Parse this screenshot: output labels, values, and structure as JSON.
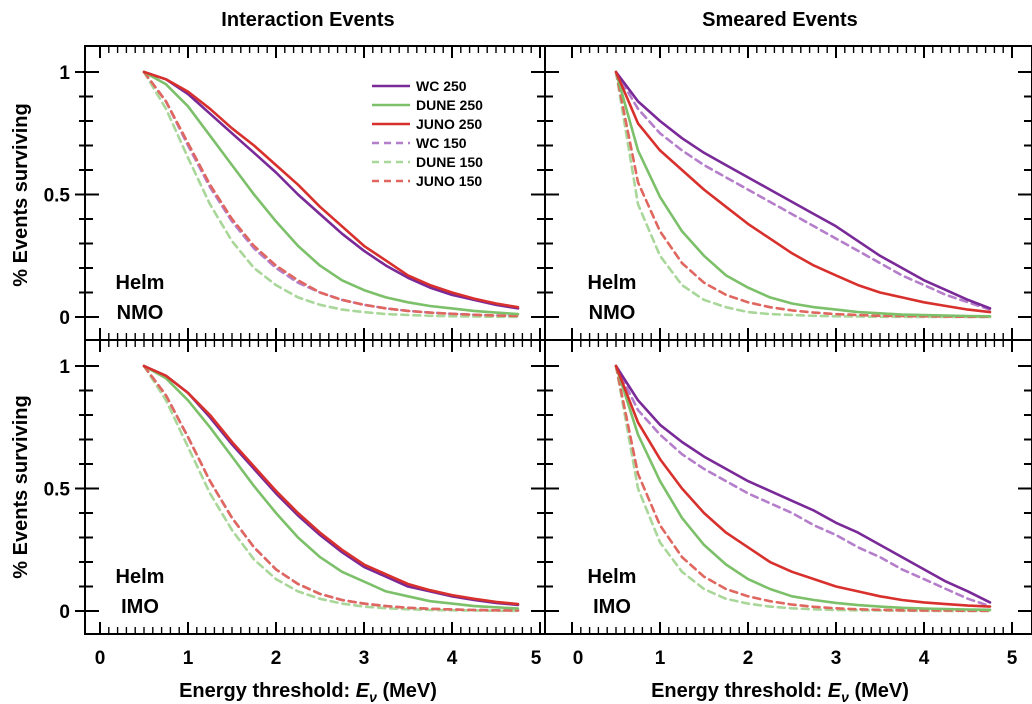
{
  "column_titles": [
    "Interaction Events",
    "Smeared Events"
  ],
  "ylabel": "% Events surviving",
  "xlabel_prefix": "Energy threshold: ",
  "xlabel_var": "E",
  "xlabel_sub": "ν",
  "xlabel_suffix": " (MeV)",
  "x_ticks": [
    "0",
    "1",
    "2",
    "3",
    "4",
    "5"
  ],
  "y_ticks": [
    "0",
    "0.5",
    "1"
  ],
  "series_styles": [
    {
      "name": "WC 250",
      "color": "#7a2a98",
      "dashed": false
    },
    {
      "name": "DUNE 250",
      "color": "#7cc06a",
      "dashed": false
    },
    {
      "name": "JUNO 250",
      "color": "#d8302c",
      "dashed": false
    },
    {
      "name": "WC 150",
      "color": "#b57ecb",
      "dashed": true
    },
    {
      "name": "DUNE 150",
      "color": "#a9d79a",
      "dashed": true
    },
    {
      "name": "JUNO 150",
      "color": "#e0675f",
      "dashed": true
    }
  ],
  "chart_data": [
    {
      "type": "line",
      "panel": "top-left",
      "notes": [
        "Helm",
        "NMO"
      ],
      "xlim": [
        0,
        5
      ],
      "ylim": [
        0,
        1.0
      ],
      "x": [
        0.5,
        0.75,
        1.0,
        1.25,
        1.5,
        1.75,
        2.0,
        2.25,
        2.5,
        2.75,
        3.0,
        3.25,
        3.5,
        3.75,
        4.0,
        4.25,
        4.5,
        4.75
      ],
      "series": [
        {
          "name": "WC 250",
          "values": [
            1.0,
            0.97,
            0.91,
            0.83,
            0.75,
            0.67,
            0.59,
            0.5,
            0.42,
            0.34,
            0.27,
            0.21,
            0.16,
            0.12,
            0.09,
            0.07,
            0.05,
            0.035
          ]
        },
        {
          "name": "DUNE 250",
          "values": [
            1.0,
            0.95,
            0.86,
            0.74,
            0.62,
            0.5,
            0.39,
            0.29,
            0.21,
            0.15,
            0.11,
            0.08,
            0.06,
            0.045,
            0.035,
            0.025,
            0.018,
            0.012
          ]
        },
        {
          "name": "JUNO 250",
          "values": [
            1.0,
            0.97,
            0.92,
            0.85,
            0.77,
            0.7,
            0.62,
            0.54,
            0.45,
            0.37,
            0.29,
            0.23,
            0.17,
            0.13,
            0.1,
            0.075,
            0.055,
            0.04
          ]
        },
        {
          "name": "WC 150",
          "values": [
            1.0,
            0.88,
            0.7,
            0.53,
            0.39,
            0.28,
            0.2,
            0.14,
            0.1,
            0.07,
            0.05,
            0.035,
            0.025,
            0.018,
            0.013,
            0.009,
            0.006,
            0.004
          ]
        },
        {
          "name": "DUNE 150",
          "values": [
            1.0,
            0.85,
            0.65,
            0.46,
            0.31,
            0.2,
            0.13,
            0.08,
            0.05,
            0.03,
            0.02,
            0.012,
            0.008,
            0.005,
            0.003,
            0.002,
            0.001,
            0.001
          ]
        },
        {
          "name": "JUNO 150",
          "values": [
            1.0,
            0.88,
            0.71,
            0.54,
            0.4,
            0.29,
            0.21,
            0.15,
            0.1,
            0.07,
            0.05,
            0.035,
            0.025,
            0.018,
            0.013,
            0.009,
            0.006,
            0.004
          ]
        }
      ]
    },
    {
      "type": "line",
      "panel": "top-right",
      "notes": [
        "Helm",
        "NMO"
      ],
      "xlim": [
        0,
        5
      ],
      "ylim": [
        0,
        1.0
      ],
      "x": [
        0.5,
        0.75,
        1.0,
        1.25,
        1.5,
        1.75,
        2.0,
        2.25,
        2.5,
        2.75,
        3.0,
        3.25,
        3.5,
        3.75,
        4.0,
        4.25,
        4.5,
        4.75
      ],
      "series": [
        {
          "name": "WC 250",
          "values": [
            1.0,
            0.88,
            0.8,
            0.73,
            0.67,
            0.62,
            0.57,
            0.52,
            0.47,
            0.42,
            0.37,
            0.31,
            0.25,
            0.2,
            0.15,
            0.11,
            0.07,
            0.035
          ]
        },
        {
          "name": "DUNE 250",
          "values": [
            1.0,
            0.68,
            0.49,
            0.35,
            0.25,
            0.17,
            0.12,
            0.08,
            0.055,
            0.04,
            0.03,
            0.02,
            0.015,
            0.01,
            0.008,
            0.006,
            0.004,
            0.003
          ]
        },
        {
          "name": "JUNO 250",
          "values": [
            1.0,
            0.79,
            0.68,
            0.6,
            0.52,
            0.45,
            0.38,
            0.32,
            0.26,
            0.21,
            0.17,
            0.13,
            0.1,
            0.08,
            0.06,
            0.045,
            0.03,
            0.02
          ]
        },
        {
          "name": "WC 150",
          "values": [
            1.0,
            0.85,
            0.75,
            0.68,
            0.62,
            0.57,
            0.52,
            0.47,
            0.42,
            0.37,
            0.32,
            0.27,
            0.22,
            0.17,
            0.13,
            0.09,
            0.06,
            0.03
          ]
        },
        {
          "name": "DUNE 150",
          "values": [
            1.0,
            0.46,
            0.25,
            0.13,
            0.07,
            0.04,
            0.02,
            0.012,
            0.008,
            0.005,
            0.003,
            0.002,
            0.001,
            0.001,
            0.0,
            0.0,
            0.0,
            0.0
          ]
        },
        {
          "name": "JUNO 150",
          "values": [
            1.0,
            0.55,
            0.35,
            0.22,
            0.14,
            0.09,
            0.06,
            0.04,
            0.027,
            0.018,
            0.012,
            0.008,
            0.005,
            0.004,
            0.003,
            0.002,
            0.001,
            0.001
          ]
        }
      ]
    },
    {
      "type": "line",
      "panel": "bottom-left",
      "notes": [
        "Helm",
        "IMO"
      ],
      "xlim": [
        0,
        5
      ],
      "ylim": [
        0,
        1.0
      ],
      "x": [
        0.5,
        0.75,
        1.0,
        1.25,
        1.5,
        1.75,
        2.0,
        2.25,
        2.5,
        2.75,
        3.0,
        3.25,
        3.5,
        3.75,
        4.0,
        4.25,
        4.5,
        4.75
      ],
      "series": [
        {
          "name": "WC 250",
          "values": [
            1.0,
            0.96,
            0.89,
            0.79,
            0.68,
            0.58,
            0.48,
            0.39,
            0.31,
            0.24,
            0.18,
            0.14,
            0.1,
            0.08,
            0.06,
            0.045,
            0.033,
            0.025
          ]
        },
        {
          "name": "DUNE 250",
          "values": [
            1.0,
            0.95,
            0.86,
            0.75,
            0.63,
            0.51,
            0.4,
            0.3,
            0.22,
            0.16,
            0.12,
            0.08,
            0.06,
            0.04,
            0.03,
            0.02,
            0.015,
            0.01
          ]
        },
        {
          "name": "JUNO 250",
          "values": [
            1.0,
            0.96,
            0.89,
            0.8,
            0.69,
            0.59,
            0.49,
            0.4,
            0.32,
            0.25,
            0.19,
            0.15,
            0.11,
            0.085,
            0.065,
            0.05,
            0.037,
            0.028
          ]
        },
        {
          "name": "WC 150",
          "values": [
            1.0,
            0.88,
            0.71,
            0.53,
            0.38,
            0.26,
            0.17,
            0.11,
            0.07,
            0.045,
            0.03,
            0.02,
            0.013,
            0.009,
            0.006,
            0.004,
            0.003,
            0.002
          ]
        },
        {
          "name": "DUNE 150",
          "values": [
            1.0,
            0.86,
            0.67,
            0.48,
            0.33,
            0.21,
            0.13,
            0.08,
            0.05,
            0.03,
            0.018,
            0.011,
            0.007,
            0.004,
            0.003,
            0.002,
            0.001,
            0.001
          ]
        },
        {
          "name": "JUNO 150",
          "values": [
            1.0,
            0.88,
            0.71,
            0.53,
            0.38,
            0.26,
            0.17,
            0.11,
            0.07,
            0.045,
            0.03,
            0.02,
            0.013,
            0.009,
            0.006,
            0.004,
            0.003,
            0.002
          ]
        }
      ]
    },
    {
      "type": "line",
      "panel": "bottom-right",
      "notes": [
        "Helm",
        "IMO"
      ],
      "xlim": [
        0,
        5
      ],
      "ylim": [
        0,
        1.0
      ],
      "x": [
        0.5,
        0.75,
        1.0,
        1.25,
        1.5,
        1.75,
        2.0,
        2.25,
        2.5,
        2.75,
        3.0,
        3.25,
        3.5,
        3.75,
        4.0,
        4.25,
        4.5,
        4.75
      ],
      "series": [
        {
          "name": "WC 250",
          "values": [
            1.0,
            0.86,
            0.76,
            0.69,
            0.63,
            0.58,
            0.53,
            0.49,
            0.45,
            0.41,
            0.36,
            0.32,
            0.27,
            0.22,
            0.17,
            0.12,
            0.08,
            0.035
          ]
        },
        {
          "name": "DUNE 250",
          "values": [
            1.0,
            0.72,
            0.53,
            0.38,
            0.27,
            0.19,
            0.13,
            0.09,
            0.06,
            0.045,
            0.033,
            0.024,
            0.018,
            0.013,
            0.01,
            0.008,
            0.006,
            0.005
          ]
        },
        {
          "name": "JUNO 250",
          "values": [
            1.0,
            0.77,
            0.62,
            0.5,
            0.4,
            0.32,
            0.26,
            0.2,
            0.16,
            0.13,
            0.1,
            0.08,
            0.06,
            0.045,
            0.035,
            0.028,
            0.022,
            0.018
          ]
        },
        {
          "name": "WC 150",
          "values": [
            1.0,
            0.82,
            0.72,
            0.64,
            0.58,
            0.53,
            0.48,
            0.44,
            0.4,
            0.35,
            0.31,
            0.26,
            0.22,
            0.17,
            0.13,
            0.09,
            0.05,
            0.02
          ]
        },
        {
          "name": "DUNE 150",
          "values": [
            1.0,
            0.5,
            0.28,
            0.16,
            0.09,
            0.05,
            0.03,
            0.018,
            0.011,
            0.007,
            0.004,
            0.003,
            0.002,
            0.001,
            0.001,
            0.0,
            0.0,
            0.0
          ]
        },
        {
          "name": "JUNO 150",
          "values": [
            1.0,
            0.56,
            0.35,
            0.22,
            0.14,
            0.09,
            0.06,
            0.04,
            0.026,
            0.017,
            0.011,
            0.007,
            0.005,
            0.003,
            0.002,
            0.002,
            0.001,
            0.001
          ]
        }
      ]
    }
  ]
}
